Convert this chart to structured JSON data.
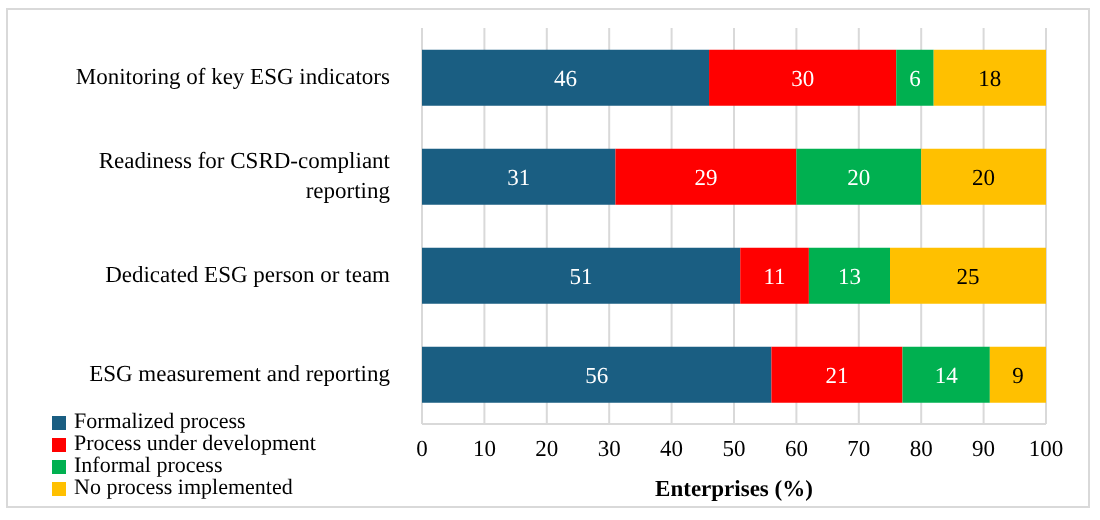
{
  "chart_data": {
    "type": "bar",
    "orientation": "horizontal",
    "stacked": true,
    "xlabel": "Enterprises (%)",
    "categories": [
      "Monitoring of key ESG indicators",
      "Readiness for CSRD-compliant reporting",
      "Dedicated ESG person or team",
      "ESG measurement and reporting"
    ],
    "series": [
      {
        "name": "Formalized process",
        "color": "#1a5e82",
        "values": [
          46,
          31,
          51,
          56
        ]
      },
      {
        "name": "Process under development",
        "color": "#ff0000",
        "values": [
          30,
          29,
          11,
          21
        ]
      },
      {
        "name": "Informal process",
        "color": "#00b050",
        "values": [
          6,
          20,
          13,
          14
        ]
      },
      {
        "name": "No process implemented",
        "color": "#ffc000",
        "values": [
          18,
          20,
          25,
          9
        ]
      }
    ],
    "xlim": [
      0,
      100
    ],
    "xticks": [
      0,
      10,
      20,
      30,
      40,
      50,
      60,
      70,
      80,
      90,
      100
    ],
    "grid": "x",
    "legend": "bottom left",
    "data_labels": true
  }
}
